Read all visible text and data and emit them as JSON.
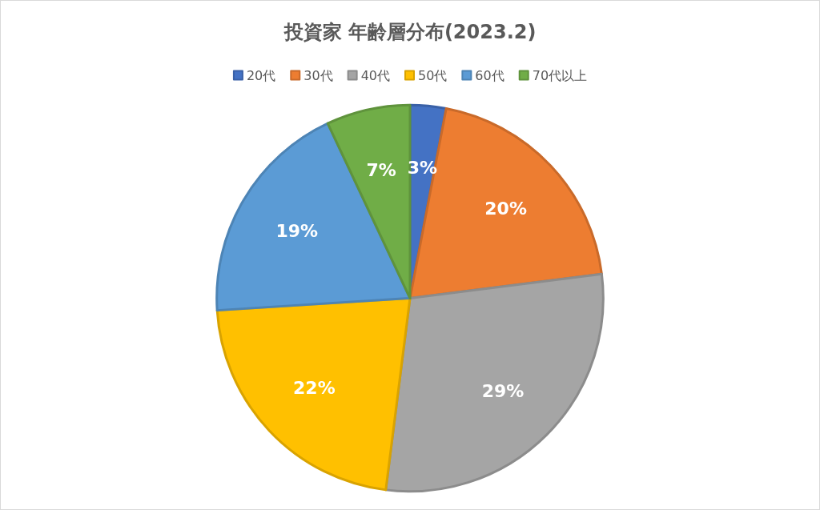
{
  "chart_data": {
    "type": "pie",
    "title": "投資家 年齢層分布(2023.2)",
    "categories": [
      "20代",
      "30代",
      "40代",
      "50代",
      "60代",
      "70代以上"
    ],
    "values": [
      3,
      20,
      29,
      22,
      19,
      7
    ],
    "colors": [
      "#4472c4",
      "#ed7d31",
      "#a5a5a5",
      "#ffc000",
      "#5b9bd5",
      "#70ad47"
    ],
    "value_labels": [
      "3%",
      "20%",
      "29%",
      "22%",
      "19%",
      "7%"
    ],
    "legend": "top"
  }
}
